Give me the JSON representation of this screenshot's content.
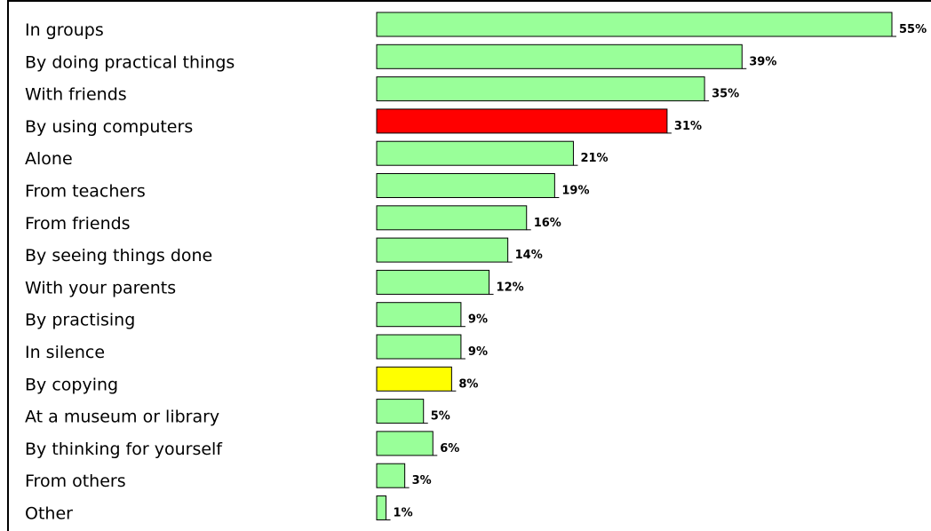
{
  "chart_data": {
    "type": "bar",
    "orientation": "horizontal",
    "title": "",
    "xlabel": "",
    "ylabel": "",
    "grid": false,
    "legend": "none",
    "xlim": [
      0,
      55
    ],
    "categories": [
      "In groups",
      "By doing practical things",
      "With friends",
      "By using computers",
      "Alone",
      "From teachers",
      "From friends",
      "By seeing things done",
      "With your parents",
      "By practising",
      "In silence",
      "By copying",
      "At a museum or library",
      "By thinking for yourself",
      "From others",
      "Other"
    ],
    "values": [
      55,
      39,
      35,
      31,
      21,
      19,
      16,
      14,
      12,
      9,
      9,
      8,
      5,
      6,
      3,
      1
    ],
    "value_labels": [
      "55%",
      "39%",
      "35%",
      "31%",
      "21%",
      "19%",
      "16%",
      "14%",
      "12%",
      "9%",
      "9%",
      "8%",
      "5%",
      "6%",
      "3%",
      "1%"
    ],
    "colors": [
      "#99ff99",
      "#99ff99",
      "#99ff99",
      "#ff0000",
      "#99ff99",
      "#99ff99",
      "#99ff99",
      "#99ff99",
      "#99ff99",
      "#99ff99",
      "#99ff99",
      "#ffff00",
      "#99ff99",
      "#99ff99",
      "#99ff99",
      "#99ff99"
    ]
  }
}
